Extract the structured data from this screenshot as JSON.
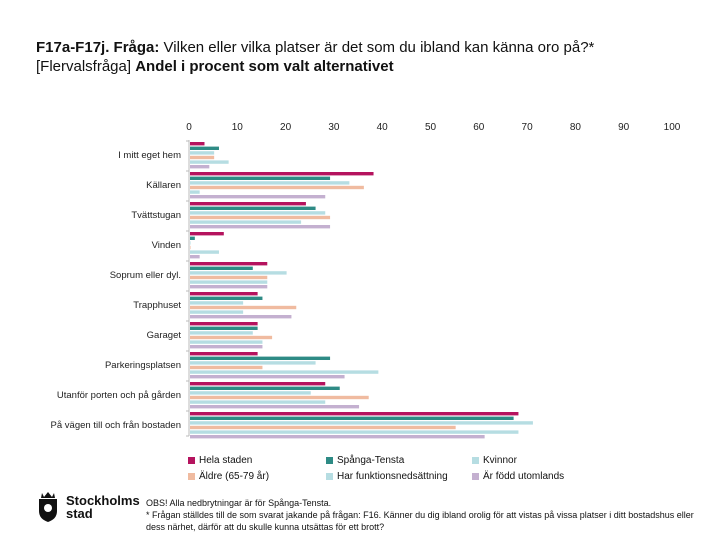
{
  "title": {
    "prefix": "F17a-F17j. Fråga:",
    "question": " Vilken eller vilka platser är det som du ibland kan känna oro på?*",
    "line2_prefix": "[Flervalsfråga] ",
    "line2_bold": "Andel i procent som valt alternativet"
  },
  "chart_data": {
    "type": "bar",
    "orientation": "horizontal",
    "title": "",
    "xlabel": "",
    "ylabel": "",
    "xlim": [
      0,
      100
    ],
    "xticks": [
      "0",
      "10",
      "20",
      "30",
      "40",
      "50",
      "60",
      "70",
      "80",
      "90",
      "100"
    ],
    "categories": [
      "I mitt eget hem",
      "Källaren",
      "Tvättstugan",
      "Vinden",
      "Soprum eller dyl.",
      "Trapphuset",
      "Garaget",
      "Parkeringsplatsen",
      "Utanför porten och på gården",
      "På vägen till och från bostaden"
    ],
    "series": [
      {
        "name": "Hela staden",
        "color": "#b5135e",
        "values": [
          3,
          38,
          24,
          7,
          16,
          14,
          14,
          14,
          28,
          68
        ]
      },
      {
        "name": "Spånga-Tensta",
        "color": "#2e8b85",
        "values": [
          6,
          29,
          26,
          1,
          13,
          15,
          14,
          29,
          31,
          67
        ]
      },
      {
        "name": "Kvinnor",
        "color": "#b6dde2",
        "values": [
          5,
          33,
          28,
          0,
          20,
          11,
          13,
          26,
          25,
          71
        ]
      },
      {
        "name": "Äldre (65-79 år)",
        "color": "#f0bba0",
        "values": [
          5,
          36,
          29,
          0,
          16,
          22,
          17,
          15,
          37,
          55
        ]
      },
      {
        "name": "Har funktionsnedsättning",
        "color": "#b6dde2",
        "values": [
          8,
          2,
          23,
          6,
          16,
          11,
          15,
          39,
          28,
          68
        ]
      },
      {
        "name": "Är född utomlands",
        "color": "#c4b0d0",
        "values": [
          4,
          28,
          29,
          2,
          16,
          21,
          15,
          32,
          35,
          61
        ]
      }
    ],
    "legend_position": "bottom"
  },
  "footnote": {
    "line1": "OBS! Alla nedbrytningar är för Spånga-Tensta.",
    "line2": "* Frågan ställdes till de som svarat jakande på frågan: F16. Känner du dig ibland orolig för att vistas på vissa platser i ditt bostadshus eller dess närhet, därför att du skulle kunna utsättas för ett brott?"
  },
  "logo": {
    "line1": "Stockholms",
    "line2": "stad"
  }
}
